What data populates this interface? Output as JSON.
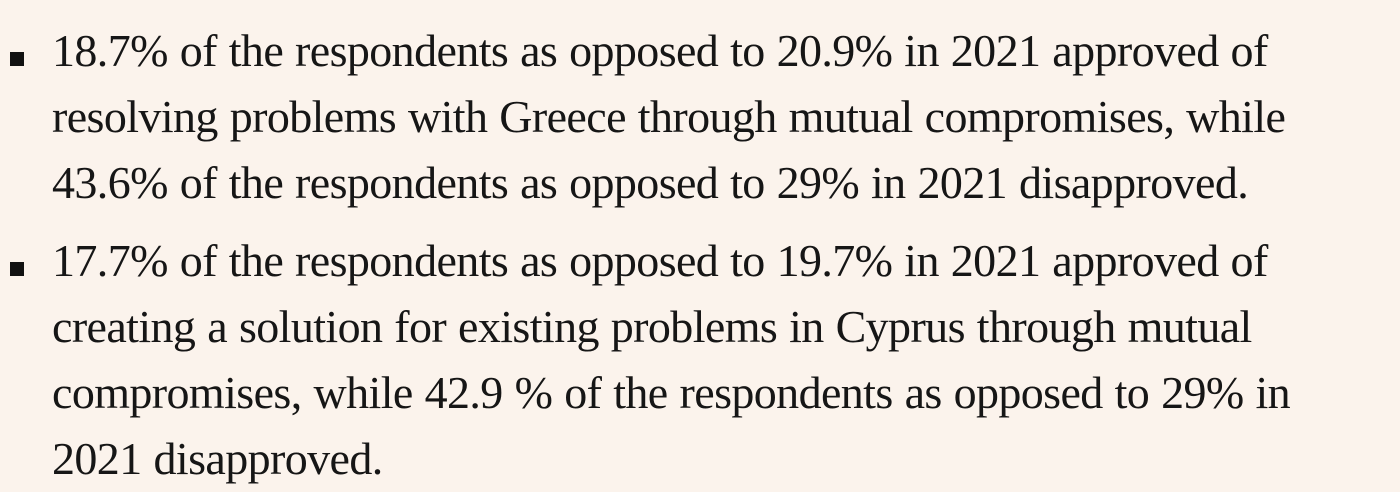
{
  "document": {
    "bullets": [
      {
        "text": "18.7% of the respondents as opposed to 20.9% in 2021 approved of resolving problems with Greece through mutual compromises, while 43.6% of the respondents as opposed to 29% in 2021 disapproved."
      },
      {
        "text": "17.7% of the respondents as opposed to 19.7% in 2021 approved of creating a solution for existing problems in Cyprus through mutual compromises, while 42.9 % of the respondents as opposed to 29% in 2021 disapproved."
      }
    ]
  }
}
